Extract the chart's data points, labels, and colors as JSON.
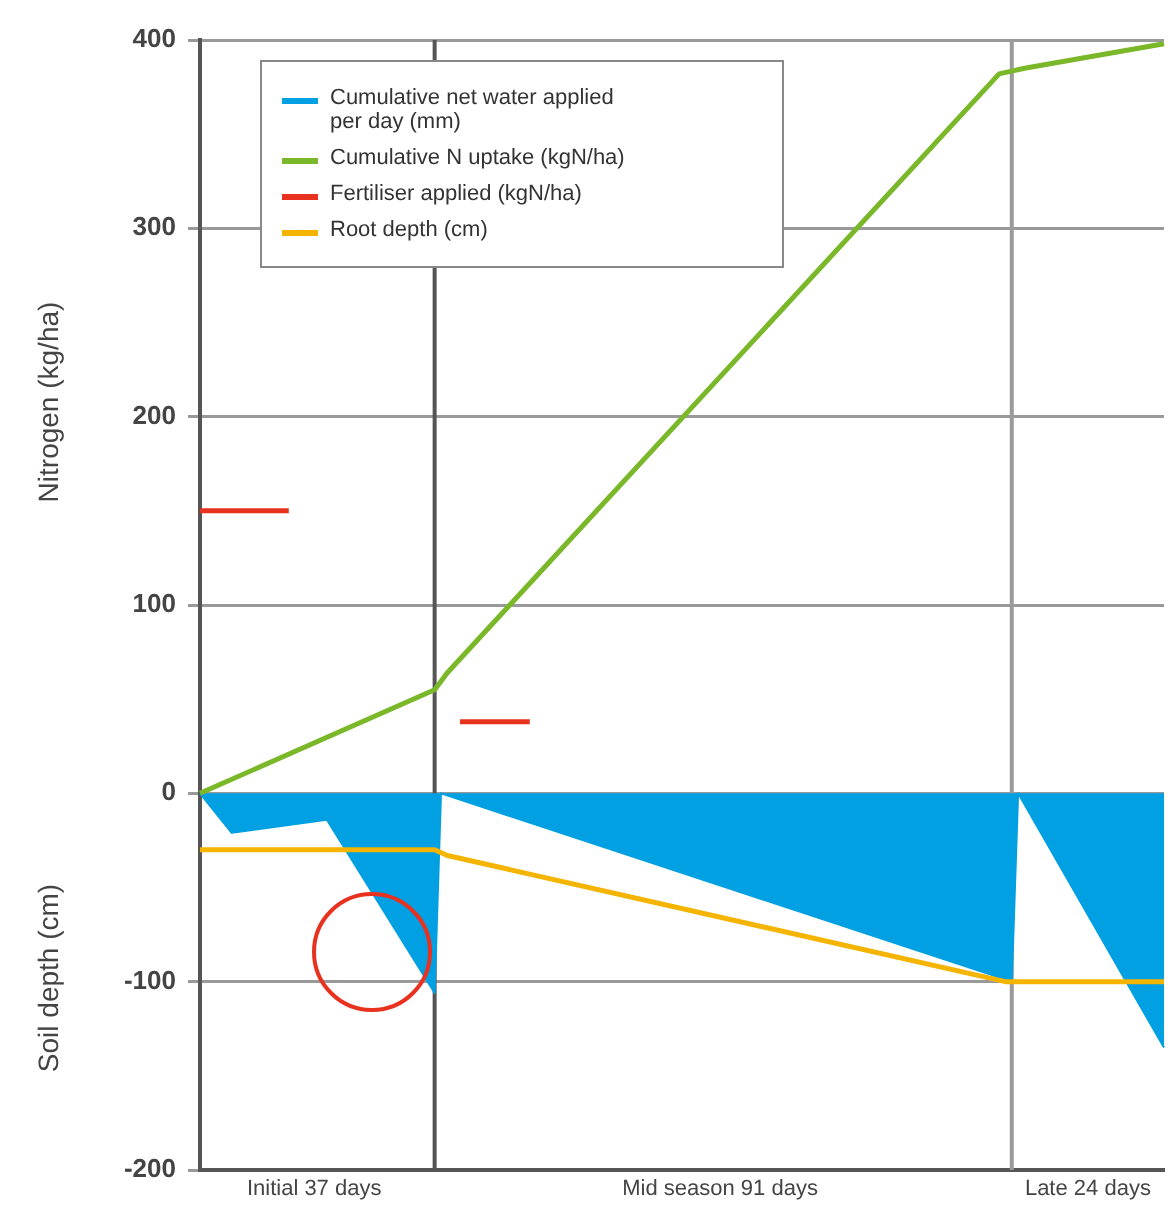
{
  "chart_data": {
    "type": "line",
    "ylabel": "Nitrogen (kg/ha)",
    "y2label": "Soil depth (cm)",
    "categories": [
      null,
      null,
      null,
      null,
      null,
      null,
      null,
      null,
      null,
      null,
      null,
      null,
      null,
      null,
      null,
      null,
      null,
      null,
      "Initial 37 days",
      null,
      null,
      null,
      null,
      null,
      null,
      null,
      null,
      null,
      null,
      null,
      null,
      null,
      null,
      null,
      null,
      null,
      null,
      null,
      null,
      null,
      null,
      null,
      null,
      null,
      null,
      null,
      null,
      null,
      null,
      null,
      null,
      null,
      null,
      null,
      null,
      null,
      null,
      null,
      null,
      null,
      null,
      null,
      null,
      null,
      null,
      null,
      null,
      null,
      null,
      null,
      null,
      null,
      null,
      null,
      null,
      null,
      null,
      null,
      null,
      null,
      null,
      null,
      "Mid season 91 days",
      null,
      null,
      null,
      null,
      null,
      null,
      null,
      null,
      null,
      null,
      null,
      null,
      null,
      null,
      null,
      null,
      null,
      null,
      null,
      null,
      null,
      null,
      null,
      null,
      null,
      null,
      null,
      null,
      null,
      null,
      null,
      null,
      null,
      null,
      null,
      null,
      null,
      null,
      null,
      null,
      null,
      null,
      null,
      null,
      null,
      null,
      null,
      null,
      null,
      null,
      null,
      null,
      null,
      null,
      null,
      null,
      null,
      "Late 24 days",
      null,
      null,
      null,
      null,
      null,
      null,
      null,
      null,
      null,
      null,
      null,
      null
    ],
    "ylim": [
      -200,
      400
    ],
    "yticks": [
      400,
      300,
      200,
      100,
      0,
      -100,
      -200
    ],
    "grid": "y",
    "legend": "top left",
    "marker": "none",
    "series": [
      {
        "name": "Cumulative net water applied per day (mm)",
        "type": "area",
        "color": "#00a0e3",
        "values": [
          0,
          null,
          null,
          null,
          null,
          -21,
          null,
          null,
          null,
          null,
          null,
          null,
          null,
          null,
          null,
          null,
          null,
          null,
          null,
          null,
          -14,
          null,
          null,
          null,
          null,
          null,
          null,
          null,
          null,
          null,
          null,
          null,
          null,
          null,
          null,
          null,
          null,
          -106,
          0,
          null,
          null,
          null,
          null,
          null,
          null,
          null,
          null,
          null,
          null,
          null,
          null,
          null,
          null,
          null,
          null,
          null,
          null,
          null,
          null,
          null,
          null,
          null,
          null,
          null,
          null,
          null,
          null,
          null,
          null,
          null,
          null,
          null,
          null,
          null,
          null,
          null,
          null,
          null,
          null,
          null,
          null,
          null,
          null,
          null,
          null,
          null,
          null,
          null,
          null,
          null,
          null,
          null,
          null,
          null,
          null,
          null,
          null,
          null,
          null,
          null,
          null,
          null,
          null,
          null,
          null,
          null,
          null,
          null,
          null,
          null,
          null,
          null,
          null,
          null,
          null,
          null,
          null,
          null,
          null,
          null,
          null,
          null,
          null,
          null,
          null,
          null,
          null,
          null,
          -100,
          0,
          null,
          null,
          null,
          null,
          null,
          null,
          null,
          null,
          null,
          null,
          null,
          null,
          null,
          null,
          null,
          null,
          null,
          null,
          null,
          null,
          null,
          null,
          -135
        ]
      },
      {
        "name": "Cumulative N uptake (kgN/ha)",
        "type": "line",
        "color": "#7ab829",
        "values": [
          0,
          null,
          null,
          null,
          null,
          null,
          null,
          null,
          null,
          null,
          null,
          null,
          null,
          null,
          null,
          null,
          null,
          null,
          null,
          null,
          null,
          null,
          null,
          null,
          null,
          null,
          null,
          null,
          null,
          null,
          null,
          null,
          null,
          null,
          null,
          null,
          null,
          55,
          null,
          64,
          null,
          null,
          null,
          null,
          null,
          null,
          null,
          null,
          null,
          null,
          null,
          null,
          null,
          null,
          null,
          null,
          null,
          null,
          null,
          null,
          null,
          null,
          null,
          null,
          null,
          null,
          null,
          null,
          null,
          null,
          null,
          null,
          null,
          null,
          null,
          null,
          null,
          null,
          null,
          null,
          null,
          null,
          null,
          null,
          null,
          null,
          null,
          null,
          null,
          null,
          null,
          null,
          null,
          null,
          null,
          null,
          null,
          null,
          null,
          null,
          null,
          null,
          null,
          null,
          null,
          null,
          null,
          null,
          null,
          null,
          null,
          null,
          null,
          null,
          null,
          null,
          null,
          null,
          null,
          null,
          null,
          null,
          null,
          null,
          null,
          null,
          382,
          null,
          null,
          null,
          385,
          null,
          null,
          null,
          null,
          null,
          null,
          null,
          null,
          null,
          null,
          null,
          null,
          null,
          null,
          null,
          null,
          null,
          null,
          null,
          null,
          null,
          398
        ]
      },
      {
        "name": "Fertiliser applied (kgN/ha)",
        "type": "line",
        "color": "#e8321f",
        "values": [
          150,
          null,
          null,
          null,
          null,
          null,
          null,
          null,
          null,
          null,
          null,
          null,
          null,
          null,
          150,
          null,
          null,
          null,
          null,
          null,
          null,
          null,
          null,
          null,
          null,
          null,
          null,
          null,
          null,
          null,
          null,
          null,
          null,
          null,
          null,
          null,
          null,
          null,
          null,
          null,
          null,
          null,
          null,
          null,
          null,
          null,
          null,
          null,
          null,
          null,
          null,
          null,
          null,
          null,
          null,
          null,
          null,
          null,
          null,
          null,
          null,
          null,
          null,
          null,
          null,
          null,
          null,
          null,
          null,
          null,
          null,
          null,
          null,
          null,
          null,
          null,
          null,
          null,
          null,
          null,
          null,
          null,
          null,
          null,
          null,
          null,
          null,
          null,
          null,
          null,
          null,
          null,
          null,
          null,
          null,
          null,
          null,
          null,
          null,
          null,
          null,
          null,
          null,
          null,
          null,
          null,
          null,
          null,
          null,
          null,
          null,
          null,
          null,
          null,
          null,
          null,
          null,
          null,
          null,
          null,
          null,
          null,
          null,
          null,
          null,
          null,
          null,
          null,
          null,
          null,
          null,
          null,
          null,
          null,
          null,
          null,
          null,
          null,
          null,
          null,
          null,
          null,
          null,
          null,
          null,
          null,
          null,
          null,
          null,
          null,
          null,
          null,
          null
        ]
      },
      {
        "type": "line",
        "color": "#e8321f",
        "values": [
          null,
          null,
          null,
          null,
          null,
          null,
          null,
          null,
          null,
          null,
          null,
          null,
          null,
          null,
          null,
          null,
          null,
          null,
          null,
          null,
          null,
          null,
          null,
          null,
          null,
          null,
          null,
          null,
          null,
          null,
          null,
          null,
          null,
          null,
          null,
          null,
          null,
          null,
          null,
          null,
          null,
          38,
          null,
          null,
          null,
          null,
          null,
          null,
          null,
          null,
          null,
          null,
          38,
          null,
          null,
          null,
          null,
          null,
          null,
          null,
          null,
          null,
          null,
          null,
          null,
          null,
          null,
          null,
          null,
          null,
          null,
          null,
          null,
          null,
          null,
          null,
          null,
          null,
          null,
          null,
          null,
          null,
          null,
          null,
          null,
          null,
          null,
          null,
          null,
          null,
          null,
          null,
          null,
          null,
          null,
          null,
          null,
          null,
          null,
          null,
          null,
          null,
          null,
          null,
          null,
          null,
          null,
          null,
          null,
          null,
          null,
          null,
          null,
          null,
          null,
          null,
          null,
          null,
          null,
          null,
          null,
          null,
          null,
          null,
          null,
          null,
          null,
          null,
          null,
          null,
          null,
          null,
          null,
          null,
          null,
          null,
          null,
          null,
          null,
          null,
          null,
          null,
          null,
          null,
          null,
          null,
          null,
          null,
          null,
          null,
          null,
          null,
          null
        ]
      },
      {
        "name": "Root depth (cm)",
        "type": "line",
        "color": "#f5b400",
        "values": [
          -30,
          null,
          null,
          null,
          null,
          null,
          null,
          null,
          null,
          null,
          null,
          null,
          null,
          null,
          null,
          null,
          null,
          null,
          null,
          null,
          null,
          null,
          null,
          null,
          null,
          null,
          null,
          null,
          null,
          null,
          null,
          null,
          null,
          null,
          null,
          null,
          null,
          -30,
          null,
          -33,
          null,
          null,
          null,
          null,
          null,
          null,
          null,
          null,
          null,
          null,
          null,
          null,
          null,
          null,
          null,
          null,
          null,
          null,
          null,
          null,
          null,
          null,
          null,
          null,
          null,
          null,
          null,
          null,
          null,
          null,
          null,
          null,
          null,
          null,
          null,
          null,
          null,
          null,
          null,
          null,
          null,
          null,
          null,
          null,
          null,
          null,
          null,
          null,
          null,
          null,
          null,
          null,
          null,
          null,
          null,
          null,
          null,
          null,
          null,
          null,
          null,
          null,
          null,
          null,
          null,
          null,
          null,
          null,
          null,
          null,
          null,
          null,
          null,
          null,
          null,
          null,
          null,
          null,
          null,
          null,
          null,
          null,
          null,
          null,
          null,
          null,
          null,
          -100,
          null,
          null,
          null,
          null,
          null,
          null,
          null,
          null,
          null,
          null,
          null,
          null,
          null,
          null,
          null,
          null,
          null,
          null,
          null,
          null,
          null,
          null,
          null,
          null,
          -100
        ]
      }
    ]
  }
}
